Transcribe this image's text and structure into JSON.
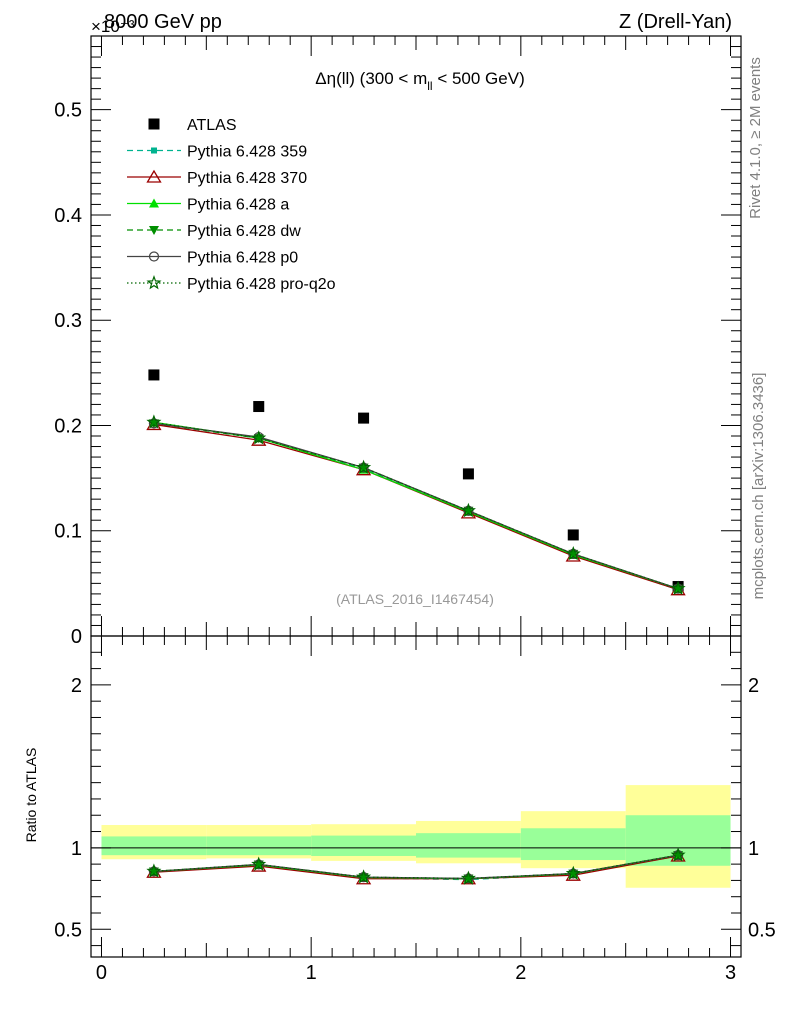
{
  "header": {
    "left": "8000 GeV pp",
    "right": "Z (Drell-Yan)",
    "exponent": "×10⁻³"
  },
  "side": {
    "rivet": "Rivet 4.1.0, ≥ 2M events",
    "mcplots": "mcplots.cern.ch [arXiv:1306.3436]"
  },
  "colors": {
    "atlas": "#000000",
    "p359": "#00b38f",
    "p370": "#9b0000",
    "pa": "#00e000",
    "pdw": "#008f00",
    "pp0": "#444444",
    "pq2o": "#006600",
    "band_outer": "#ffff99",
    "band_inner": "#99ff99"
  },
  "chart_data": [
    {
      "type": "line",
      "panel": "main",
      "title": "Δη(ll) (300 < m_ll < 500 GeV)",
      "title_parts": [
        "Δη(ll) (300 < m",
        "ll",
        " < 500 GeV)"
      ],
      "watermark": "(ATLAS_2016_I1467454)",
      "xlabel": "",
      "ylabel": "",
      "xlim": [
        -0.05,
        3.05
      ],
      "ylim": [
        0,
        0.57
      ],
      "yticks": [
        0,
        0.1,
        0.2,
        0.3,
        0.4,
        0.5
      ],
      "ytick_labels": [
        "0",
        "0.1",
        "0.2",
        "0.3",
        "0.4",
        "0.5"
      ],
      "x": [
        0.25,
        0.75,
        1.25,
        1.75,
        2.25,
        2.75
      ],
      "legend_position": "top-left",
      "series": [
        {
          "key": "atlas",
          "name": "ATLAS",
          "marker": "square",
          "line": "none",
          "values": [
            0.248,
            0.218,
            0.207,
            0.154,
            0.096,
            0.047
          ]
        },
        {
          "key": "p359",
          "name": "Pythia 6.428 359",
          "marker": "small-square",
          "line": "dashed",
          "values": [
            0.202,
            0.188,
            0.159,
            0.118,
            0.077,
            0.044
          ]
        },
        {
          "key": "p370",
          "name": "Pythia 6.428 370",
          "marker": "open-triangle",
          "line": "solid",
          "values": [
            0.201,
            0.186,
            0.158,
            0.117,
            0.076,
            0.044
          ]
        },
        {
          "key": "pa",
          "name": "Pythia 6.428 a",
          "marker": "triangle",
          "line": "solid",
          "values": [
            0.203,
            0.188,
            0.158,
            0.118,
            0.077,
            0.045
          ]
        },
        {
          "key": "pdw",
          "name": "Pythia 6.428 dw",
          "marker": "triangle-down",
          "line": "dashed",
          "values": [
            0.202,
            0.188,
            0.16,
            0.119,
            0.078,
            0.045
          ]
        },
        {
          "key": "pp0",
          "name": "Pythia 6.428 p0",
          "marker": "open-circle",
          "line": "solid",
          "values": [
            0.202,
            0.189,
            0.16,
            0.119,
            0.078,
            0.045
          ]
        },
        {
          "key": "pq2o",
          "name": "Pythia 6.428 pro-q2o",
          "marker": "star",
          "line": "dotted",
          "values": [
            0.203,
            0.188,
            0.16,
            0.119,
            0.078,
            0.045
          ]
        }
      ]
    },
    {
      "type": "line",
      "panel": "ratio",
      "xlabel": "",
      "ylabel": "Ratio to ATLAS",
      "xlim": [
        -0.05,
        3.05
      ],
      "ylim": [
        0.33,
        2.3
      ],
      "yticks": [
        0.5,
        1,
        2
      ],
      "ytick_labels": [
        "0.5",
        "1",
        "2"
      ],
      "xticks": [
        0,
        1,
        2,
        3
      ],
      "xtick_labels": [
        "0",
        "1",
        "2",
        "3"
      ],
      "x": [
        0.25,
        0.75,
        1.25,
        1.75,
        2.25,
        2.75
      ],
      "bands": {
        "edges": [
          0,
          0.5,
          1,
          1.5,
          2,
          2.5,
          3
        ],
        "outer_low": [
          0.93,
          0.935,
          0.92,
          0.905,
          0.875,
          0.755
        ],
        "outer_high": [
          1.14,
          1.14,
          1.145,
          1.165,
          1.225,
          1.385
        ],
        "inner_low": [
          0.955,
          0.955,
          0.95,
          0.94,
          0.925,
          0.89
        ],
        "inner_high": [
          1.07,
          1.07,
          1.075,
          1.09,
          1.12,
          1.2
        ]
      },
      "series": [
        {
          "key": "p359",
          "values": [
            0.852,
            0.895,
            0.815,
            0.805,
            0.838,
            0.95
          ]
        },
        {
          "key": "p370",
          "values": [
            0.85,
            0.888,
            0.81,
            0.81,
            0.832,
            0.95
          ]
        },
        {
          "key": "pa",
          "values": [
            0.855,
            0.895,
            0.818,
            0.81,
            0.84,
            0.955
          ]
        },
        {
          "key": "pdw",
          "values": [
            0.855,
            0.898,
            0.82,
            0.812,
            0.842,
            0.955
          ]
        },
        {
          "key": "pp0",
          "values": [
            0.855,
            0.898,
            0.82,
            0.812,
            0.842,
            0.955
          ]
        },
        {
          "key": "pq2o",
          "values": [
            0.856,
            0.898,
            0.82,
            0.812,
            0.842,
            0.955
          ]
        }
      ]
    }
  ]
}
